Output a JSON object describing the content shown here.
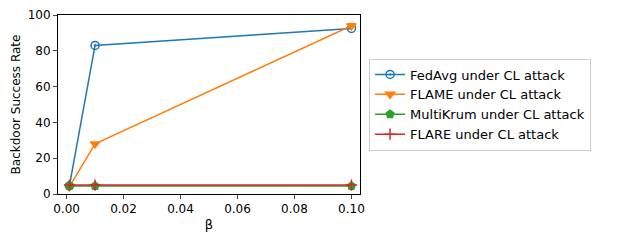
{
  "chart_data": {
    "type": "line",
    "x_label": "β",
    "y_label": "Backdoor Success Rate",
    "x": [
      0.001,
      0.01,
      0.1
    ],
    "xlim": [
      -0.003,
      0.103
    ],
    "xticks": [
      {
        "value": 0,
        "label": "0.00"
      },
      {
        "value": 0.02,
        "label": "0.02"
      },
      {
        "value": 0.04,
        "label": "0.04"
      },
      {
        "value": 0.06,
        "label": "0.06"
      },
      {
        "value": 0.08,
        "label": "0.08"
      },
      {
        "value": 0.1,
        "label": "0.10"
      }
    ],
    "ylim": [
      0,
      100
    ],
    "yticks": [
      0,
      20,
      40,
      60,
      80,
      100
    ],
    "grid": false,
    "legend": "right",
    "series": [
      {
        "name": "FedAvg under CL attack",
        "color": "#1f77b4",
        "marker": "circle",
        "values": [
          4.5,
          83,
          92.5
        ]
      },
      {
        "name": "FLAME under CL attack",
        "color": "#ff7f0e",
        "marker": "triangle-down",
        "values": [
          4,
          28,
          94
        ]
      },
      {
        "name": "MultiKrum under CL attack",
        "color": "#2ca02c",
        "marker": "pentagon",
        "values": [
          4.5,
          4.5,
          4.5
        ]
      },
      {
        "name": "FLARE under CL attack",
        "color": "#d62728",
        "marker": "plus",
        "values": [
          5,
          5,
          5
        ]
      }
    ]
  }
}
